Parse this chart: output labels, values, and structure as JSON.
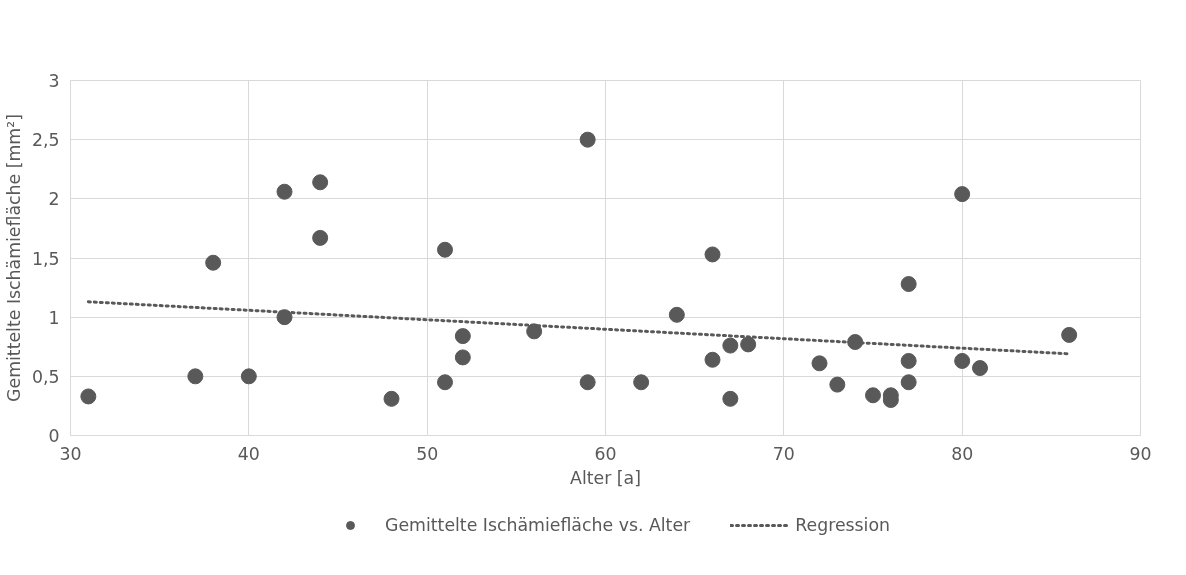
{
  "chart_data": {
    "type": "scatter",
    "xlabel": "Alter [a]",
    "ylabel": "Gemittelte Ischämiefläche [mm²]",
    "xlim": [
      30,
      90
    ],
    "xticks": [
      30,
      40,
      50,
      60,
      70,
      80,
      90
    ],
    "ylim": [
      0,
      3
    ],
    "yticks": [
      0,
      {
        "value": 0.5,
        "label": "0,5"
      },
      1,
      {
        "value": 1.5,
        "label": "1,5"
      },
      2,
      {
        "value": 2.5,
        "label": "2,5"
      },
      3
    ],
    "grid": true,
    "legend": "bottom",
    "marker": "circle",
    "series": [
      {
        "name": "Gemittelte Ischämiefläche vs. Alter",
        "color": "#595959",
        "x": [
          31,
          37,
          38,
          40,
          42,
          42,
          44,
          44,
          48,
          51,
          51,
          52,
          52,
          56,
          59,
          59,
          62,
          64,
          66,
          66,
          67,
          67,
          68,
          72,
          73,
          74,
          75,
          76,
          76,
          77,
          77,
          77,
          80,
          80,
          81,
          86
        ],
        "values": [
          0.33,
          0.5,
          1.46,
          0.5,
          2.06,
          1.0,
          2.14,
          1.67,
          0.31,
          1.57,
          0.45,
          0.84,
          0.66,
          0.88,
          2.5,
          0.45,
          0.45,
          1.02,
          1.53,
          0.64,
          0.76,
          0.31,
          0.77,
          0.61,
          0.43,
          0.79,
          0.34,
          0.34,
          0.3,
          1.28,
          0.63,
          0.45,
          2.04,
          0.63,
          0.57,
          0.85
        ]
      },
      {
        "name": "Regression",
        "type": "line",
        "line_style": "dotted",
        "marker": "none",
        "color": "#595959",
        "x": [
          31,
          86
        ],
        "values": [
          1.13,
          0.69
        ]
      }
    ]
  }
}
